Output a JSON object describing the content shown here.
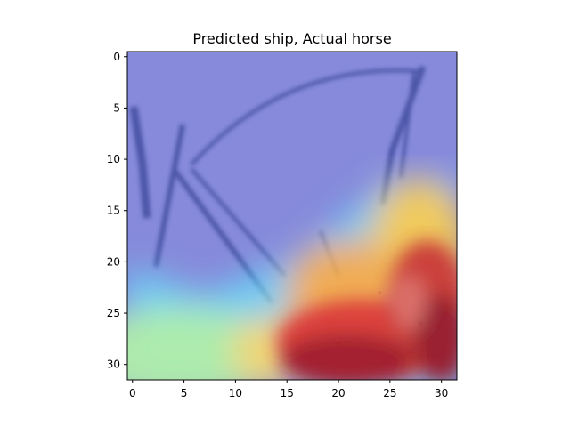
{
  "chart_data": {
    "type": "heatmap",
    "title": "Predicted ship, Actual horse",
    "xlabel": "",
    "ylabel": "",
    "xlim": [
      -0.5,
      31.5
    ],
    "ylim": [
      31.5,
      -0.5
    ],
    "x_ticks": [
      0,
      5,
      10,
      15,
      20,
      25,
      30
    ],
    "y_ticks": [
      0,
      5,
      10,
      15,
      20,
      25,
      30
    ],
    "grid": false,
    "colormap": "jet",
    "image_size": [
      32,
      32
    ],
    "heat_peak_region": "bottom-right",
    "heat_hotspots": [
      {
        "x": 20,
        "y": 28,
        "weight": 1.0
      },
      {
        "x": 28,
        "y": 26,
        "weight": 0.9
      },
      {
        "x": 24,
        "y": 23,
        "weight": 0.8
      }
    ],
    "heat_zones": [
      {
        "zone": "bottom-right",
        "level": 1.0
      },
      {
        "zone": "bottom-left",
        "level": 0.45
      },
      {
        "zone": "center-right",
        "level": 0.4
      },
      {
        "zone": "top",
        "level": 0.05
      }
    ],
    "colors": {
      "cold": "#2a33c8",
      "cool": "#3fe0ff",
      "warm": "#c8ff9a",
      "hot": "#ffe066",
      "max": "#9a0d14",
      "image_base": "#9a9ad2",
      "image_lines": "#1c2a66"
    }
  }
}
